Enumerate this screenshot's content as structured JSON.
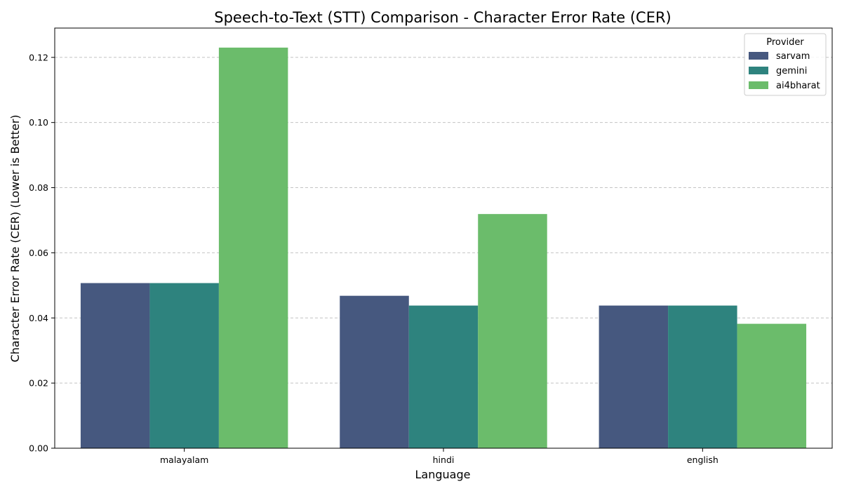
{
  "chart_data": {
    "type": "bar",
    "title": "Speech-to-Text (STT) Comparison - Character Error Rate (CER)",
    "xlabel": "Language",
    "ylabel": "Character Error Rate (CER) (Lower is Better)",
    "categories": [
      "malayalam",
      "hindi",
      "english"
    ],
    "series": [
      {
        "name": "sarvam",
        "color": "#46587f",
        "values": [
          0.0507,
          0.0468,
          0.0438
        ]
      },
      {
        "name": "gemini",
        "color": "#2e837e",
        "values": [
          0.0507,
          0.0438,
          0.0438
        ]
      },
      {
        "name": "ai4bharat",
        "color": "#6bbc6b",
        "values": [
          0.123,
          0.0719,
          0.0382
        ]
      }
    ],
    "ylim": [
      0,
      0.129
    ],
    "yticks": [
      "0.00",
      "0.02",
      "0.04",
      "0.06",
      "0.08",
      "0.10",
      "0.12"
    ],
    "grid": "y-dashed",
    "legend": {
      "title": "Provider",
      "position": "top-right"
    }
  }
}
